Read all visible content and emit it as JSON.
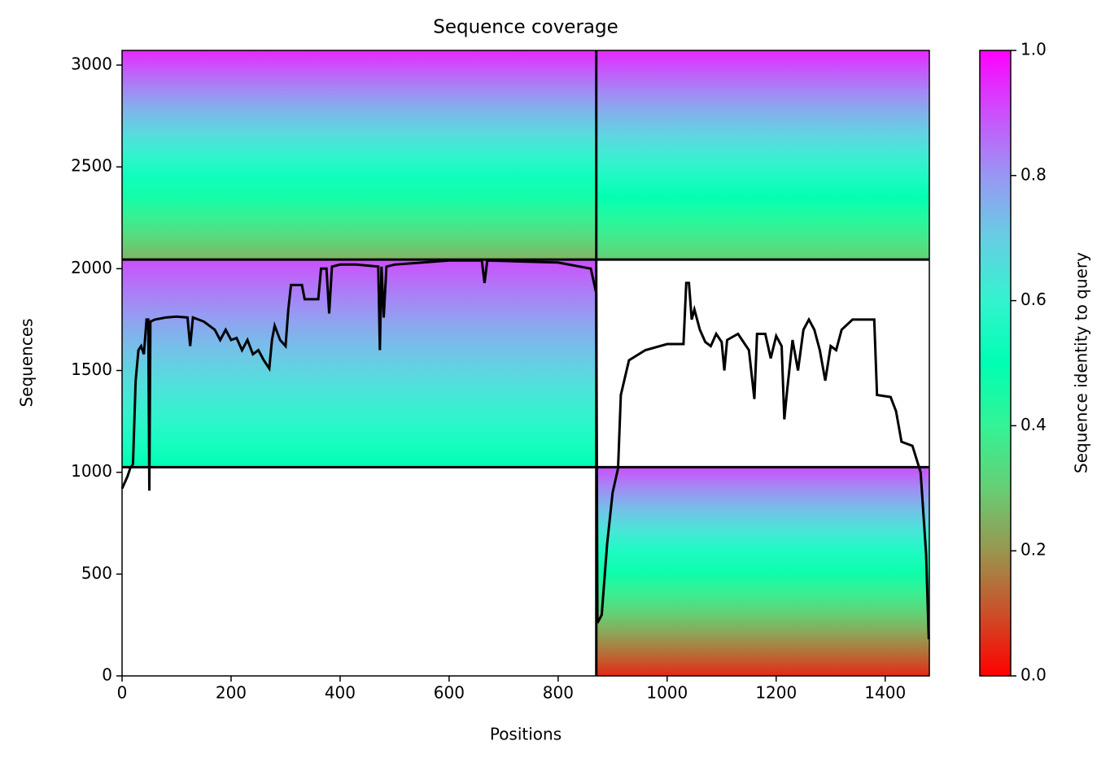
{
  "chart_data": {
    "type": "coverage",
    "title": "Sequence coverage",
    "x_label": "Positions",
    "y_label": "Sequences",
    "colorbar_label": "Sequence identity to query",
    "xlim": [
      0,
      1481
    ],
    "ylim": [
      0,
      3072
    ],
    "xticks": [
      0,
      200,
      400,
      600,
      800,
      1000,
      1200,
      1400
    ],
    "yticks": [
      0,
      500,
      1000,
      1500,
      2000,
      2500,
      3000
    ],
    "clim": [
      0,
      1
    ],
    "cticks": [
      {
        "value": 0,
        "label": "0.0"
      },
      {
        "value": 0.2,
        "label": "0.2"
      },
      {
        "value": 0.4,
        "label": "0.4"
      },
      {
        "value": 0.6,
        "label": "0.6"
      },
      {
        "value": 0.8,
        "label": "0.8"
      },
      {
        "value": 1,
        "label": "1.0"
      }
    ],
    "colormap": "rainbow_r",
    "blocks": [
      {
        "x": [
          0,
          870
        ],
        "y": [
          2045,
          3072
        ],
        "identity": [
          0.25,
          0.95
        ]
      },
      {
        "x": [
          870,
          1481
        ],
        "y": [
          2045,
          3072
        ],
        "identity": [
          0.3,
          0.95
        ]
      },
      {
        "x": [
          0,
          870
        ],
        "y": [
          1025,
          2045
        ],
        "identity": [
          0.5,
          0.9
        ]
      },
      {
        "x": [
          870,
          1481
        ],
        "y": [
          0,
          1025
        ],
        "identity": [
          0.05,
          0.9
        ]
      }
    ],
    "dividers_x": [
      870
    ],
    "dividers_y": [
      1025,
      2045
    ],
    "line_color": "#000000",
    "x": [
      0,
      10,
      15,
      20,
      25,
      30,
      35,
      40,
      45,
      48,
      50,
      52,
      60,
      80,
      100,
      120,
      125,
      130,
      150,
      170,
      180,
      190,
      200,
      210,
      220,
      230,
      240,
      250,
      260,
      270,
      275,
      280,
      290,
      300,
      305,
      310,
      330,
      335,
      360,
      365,
      375,
      380,
      385,
      400,
      430,
      470,
      473,
      476,
      480,
      485,
      500,
      600,
      660,
      665,
      670,
      800,
      860,
      870,
      872,
      880,
      890,
      900,
      910,
      915,
      930,
      960,
      1000,
      1030,
      1035,
      1040,
      1045,
      1050,
      1060,
      1070,
      1080,
      1090,
      1100,
      1105,
      1110,
      1130,
      1150,
      1160,
      1165,
      1180,
      1190,
      1200,
      1210,
      1215,
      1220,
      1230,
      1240,
      1250,
      1260,
      1270,
      1280,
      1290,
      1300,
      1310,
      1320,
      1340,
      1380,
      1385,
      1410,
      1420,
      1430,
      1450,
      1465,
      1475,
      1480
    ],
    "values": [
      920,
      980,
      1020,
      1040,
      1450,
      1600,
      1620,
      1580,
      1750,
      1750,
      910,
      1740,
      1750,
      1760,
      1765,
      1760,
      1620,
      1760,
      1740,
      1700,
      1650,
      1700,
      1650,
      1660,
      1600,
      1650,
      1580,
      1600,
      1550,
      1510,
      1650,
      1720,
      1650,
      1620,
      1800,
      1920,
      1920,
      1850,
      1850,
      2000,
      2000,
      1780,
      2010,
      2020,
      2020,
      2010,
      1600,
      2010,
      1760,
      2010,
      2020,
      2040,
      2040,
      1930,
      2040,
      2030,
      2000,
      1880,
      260,
      300,
      650,
      900,
      1020,
      1380,
      1550,
      1600,
      1630,
      1630,
      1930,
      1930,
      1750,
      1800,
      1700,
      1640,
      1620,
      1680,
      1640,
      1500,
      1650,
      1680,
      1600,
      1360,
      1680,
      1680,
      1560,
      1670,
      1620,
      1260,
      1400,
      1650,
      1500,
      1700,
      1750,
      1700,
      1600,
      1450,
      1620,
      1600,
      1700,
      1750,
      1750,
      1380,
      1370,
      1300,
      1150,
      1130,
      1000,
      600,
      180
    ]
  }
}
